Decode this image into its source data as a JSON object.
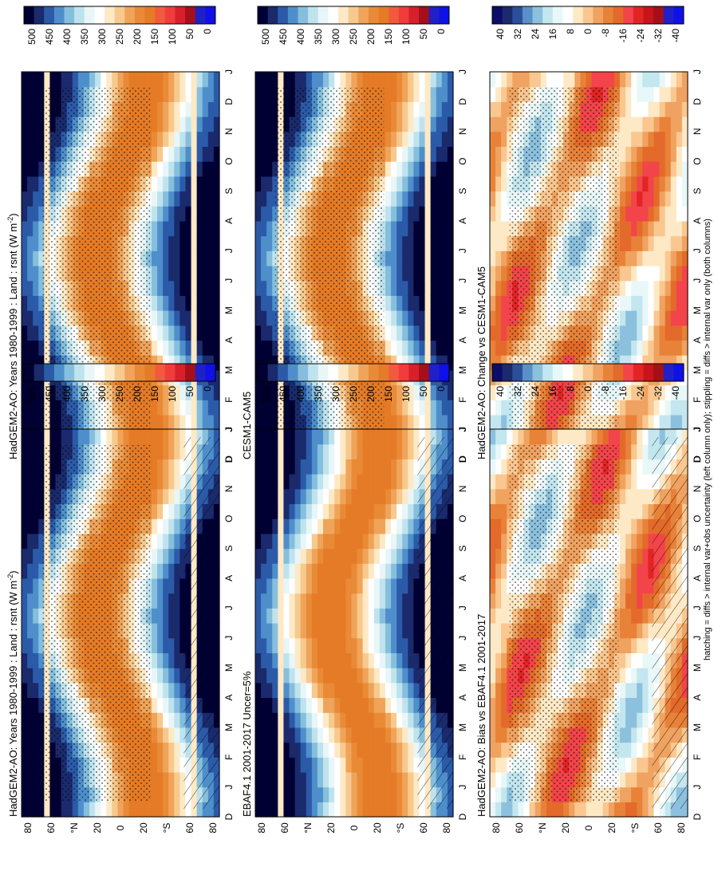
{
  "footnote": "hatching = diffs > internal var+obs uncertainty (left column only); stippling = diffs > internal var only (both columns)",
  "colors": {
    "field": [
      "#000033",
      "#1a2a6c",
      "#2b5ba8",
      "#4e8fcb",
      "#86bfdd",
      "#bfe3ee",
      "#e8f6f8",
      "#ffffff",
      "#fde9c5",
      "#f7c98d",
      "#efa45a",
      "#e98a37",
      "#e57b26",
      "#f25a3e",
      "#f23b3b",
      "#d81f2a",
      "#a50f1a",
      "#2020c8",
      "#1010e8"
    ],
    "diff": [
      "#0c0c6a",
      "#1a2a6c",
      "#2c4f9c",
      "#5a8fc8",
      "#8cc1de",
      "#c3e6ef",
      "#e8f7f8",
      "#ffffff",
      "#fde9c5",
      "#f9c78f",
      "#f0a260",
      "#e88238",
      "#e36a2a",
      "#f2444a",
      "#e32424",
      "#c8141a",
      "#a50f1a",
      "#2020c8",
      "#1010e8"
    ]
  },
  "panels": [
    {
      "id": "top-right",
      "title": "HadGEM2-AO: Years 1980-1999 : Land : rsnt (W m",
      "title_sup": "-2",
      "title_tail": ")",
      "kind": "field",
      "hatch": false,
      "stipple": true
    },
    {
      "id": "top-left",
      "title": "HadGEM2-AO: Years 1980-1999 : Land : rsnt (W m",
      "title_sup": "-2",
      "title_tail": ")",
      "kind": "field",
      "hatch": true,
      "stipple": true
    },
    {
      "id": "mid-right",
      "title": "CESM1-CAM5",
      "title_sup": "",
      "title_tail": "",
      "kind": "field",
      "hatch": false,
      "stipple": true
    },
    {
      "id": "mid-left",
      "title": "EBAF4.1 2001-2017 Uncer=5%",
      "title_sup": "",
      "title_tail": "",
      "kind": "field",
      "hatch": true,
      "stipple": false
    },
    {
      "id": "bot-right",
      "title": "HadGEM2-AO: Change vs CESM1-CAM5",
      "title_sup": "",
      "title_tail": "",
      "kind": "diff",
      "hatch": false,
      "stipple": true
    },
    {
      "id": "bot-left",
      "title": "HadGEM2-AO: Bias vs EBAF4.1 2001-2017",
      "title_sup": "",
      "title_tail": "",
      "kind": "diff",
      "hatch": true,
      "stipple": true
    }
  ],
  "months": [
    "D",
    "J",
    "F",
    "M",
    "A",
    "M",
    "J",
    "J",
    "A",
    "S",
    "O",
    "N",
    "D",
    "J"
  ],
  "lat_labels": [
    "80",
    "60",
    "°N",
    "20",
    "0",
    "20",
    "°S",
    "60",
    "80"
  ],
  "chart_data": [
    {
      "type": "heatmap",
      "panel": "top-right",
      "title": "HadGEM2-AO: Years 1980-1999 : Land : rsnt (W m-2)",
      "x": [
        "D",
        "J",
        "F",
        "M",
        "A",
        "M",
        "J",
        "J",
        "A",
        "S",
        "O",
        "N",
        "D",
        "J"
      ],
      "y": [
        80,
        60,
        40,
        20,
        0,
        -20,
        -40,
        -60,
        -80
      ],
      "colorbar_ticks": [
        500,
        450,
        400,
        350,
        300,
        250,
        200,
        150,
        100,
        50,
        0
      ],
      "zlim": [
        0,
        500
      ]
    },
    {
      "type": "heatmap",
      "panel": "top-left",
      "title": "HadGEM2-AO: Years 1980-1999 : Land : rsnt (W m-2)",
      "x": [
        "D",
        "J",
        "F",
        "M",
        "A",
        "M",
        "J",
        "J",
        "A",
        "S",
        "O",
        "N",
        "D",
        "J"
      ],
      "y": [
        80,
        60,
        40,
        20,
        0,
        -20,
        -40,
        -60,
        -80
      ],
      "colorbar_ticks": [
        500,
        450,
        400,
        350,
        300,
        250,
        200,
        150,
        100,
        50,
        0
      ],
      "zlim": [
        0,
        500
      ]
    },
    {
      "type": "heatmap",
      "panel": "mid-right",
      "title": "CESM1-CAM5",
      "x": [
        "D",
        "J",
        "F",
        "M",
        "A",
        "M",
        "J",
        "J",
        "A",
        "S",
        "O",
        "N",
        "D",
        "J"
      ],
      "y": [
        80,
        60,
        40,
        20,
        0,
        -20,
        -40,
        -60,
        -80
      ],
      "colorbar_ticks": [
        500,
        450,
        400,
        350,
        300,
        250,
        200,
        150,
        100,
        50,
        0
      ],
      "zlim": [
        0,
        500
      ]
    },
    {
      "type": "heatmap",
      "panel": "mid-left",
      "title": "EBAF4.1 2001-2017 Uncer=5%",
      "x": [
        "D",
        "J",
        "F",
        "M",
        "A",
        "M",
        "J",
        "J",
        "A",
        "S",
        "O",
        "N",
        "D",
        "J"
      ],
      "y": [
        80,
        60,
        40,
        20,
        0,
        -20,
        -40,
        -60,
        -80
      ],
      "colorbar_ticks": [
        500,
        450,
        400,
        350,
        300,
        250,
        200,
        150,
        100,
        50,
        0
      ],
      "zlim": [
        0,
        500
      ]
    },
    {
      "type": "heatmap",
      "panel": "bot-right",
      "title": "HadGEM2-AO: Change vs CESM1-CAM5",
      "x": [
        "D",
        "J",
        "F",
        "M",
        "A",
        "M",
        "J",
        "J",
        "A",
        "S",
        "O",
        "N",
        "D",
        "J"
      ],
      "y": [
        80,
        60,
        40,
        20,
        0,
        -20,
        -40,
        -60,
        -80
      ],
      "colorbar_ticks": [
        40,
        32,
        24,
        16,
        8,
        0,
        -8,
        -16,
        -24,
        -32,
        -40
      ],
      "zlim": [
        -40,
        40
      ]
    },
    {
      "type": "heatmap",
      "panel": "bot-left",
      "title": "HadGEM2-AO: Bias vs EBAF4.1 2001-2017",
      "x": [
        "D",
        "J",
        "F",
        "M",
        "A",
        "M",
        "J",
        "J",
        "A",
        "S",
        "O",
        "N",
        "D",
        "J"
      ],
      "y": [
        80,
        60,
        40,
        20,
        0,
        -20,
        -40,
        -60,
        -80
      ],
      "colorbar_ticks": [
        40,
        32,
        24,
        16,
        8,
        0,
        -8,
        -16,
        -24,
        -32,
        -40
      ],
      "zlim": [
        -40,
        40
      ]
    }
  ]
}
